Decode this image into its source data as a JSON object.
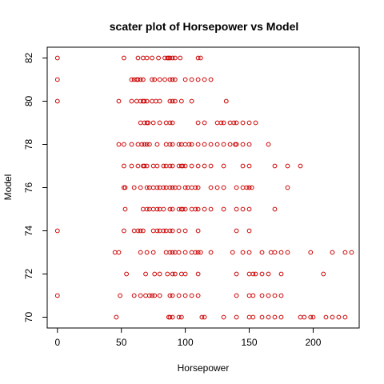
{
  "chart_data": {
    "type": "scatter",
    "title": "scater plot of Horsepower vs Model",
    "xlabel": "Horsepower",
    "ylabel": "Model",
    "xlim": [
      -8,
      236
    ],
    "ylim": [
      69.5,
      82.5
    ],
    "x_ticks": [
      0,
      50,
      100,
      150,
      200
    ],
    "y_ticks": [
      70,
      72,
      74,
      76,
      78,
      80,
      82
    ],
    "grid": false,
    "point_color": "#cc0000",
    "series": [
      {
        "points": [
          [
            0,
            82
          ],
          [
            52,
            82
          ],
          [
            63,
            82
          ],
          [
            67,
            82
          ],
          [
            70,
            82
          ],
          [
            74,
            82
          ],
          [
            79,
            82
          ],
          [
            84,
            82
          ],
          [
            86,
            82
          ],
          [
            87,
            82
          ],
          [
            88,
            82
          ],
          [
            90,
            82
          ],
          [
            92,
            82
          ],
          [
            96,
            82
          ],
          [
            110,
            82
          ],
          [
            112,
            82
          ],
          [
            0,
            81
          ],
          [
            58,
            81
          ],
          [
            60,
            81
          ],
          [
            62,
            81
          ],
          [
            63,
            81
          ],
          [
            65,
            81
          ],
          [
            67,
            81
          ],
          [
            74,
            81
          ],
          [
            76,
            81
          ],
          [
            80,
            81
          ],
          [
            84,
            81
          ],
          [
            88,
            81
          ],
          [
            90,
            81
          ],
          [
            92,
            81
          ],
          [
            100,
            81
          ],
          [
            105,
            81
          ],
          [
            110,
            81
          ],
          [
            115,
            81
          ],
          [
            120,
            81
          ],
          [
            0,
            80
          ],
          [
            48,
            80
          ],
          [
            58,
            80
          ],
          [
            62,
            80
          ],
          [
            65,
            80
          ],
          [
            67,
            80
          ],
          [
            68,
            80
          ],
          [
            70,
            80
          ],
          [
            74,
            80
          ],
          [
            77,
            80
          ],
          [
            80,
            80
          ],
          [
            88,
            80
          ],
          [
            90,
            80
          ],
          [
            92,
            80
          ],
          [
            97,
            80
          ],
          [
            105,
            80
          ],
          [
            132,
            80
          ],
          [
            65,
            79
          ],
          [
            68,
            79
          ],
          [
            70,
            79
          ],
          [
            71,
            79
          ],
          [
            75,
            79
          ],
          [
            80,
            79
          ],
          [
            85,
            79
          ],
          [
            88,
            79
          ],
          [
            90,
            79
          ],
          [
            110,
            79
          ],
          [
            115,
            79
          ],
          [
            125,
            79
          ],
          [
            128,
            79
          ],
          [
            130,
            79
          ],
          [
            135,
            79
          ],
          [
            138,
            79
          ],
          [
            140,
            79
          ],
          [
            145,
            79
          ],
          [
            150,
            79
          ],
          [
            155,
            79
          ],
          [
            48,
            78
          ],
          [
            52,
            78
          ],
          [
            58,
            78
          ],
          [
            63,
            78
          ],
          [
            66,
            78
          ],
          [
            68,
            78
          ],
          [
            70,
            78
          ],
          [
            72,
            78
          ],
          [
            78,
            78
          ],
          [
            85,
            78
          ],
          [
            88,
            78
          ],
          [
            90,
            78
          ],
          [
            95,
            78
          ],
          [
            97,
            78
          ],
          [
            100,
            78
          ],
          [
            103,
            78
          ],
          [
            105,
            78
          ],
          [
            110,
            78
          ],
          [
            115,
            78
          ],
          [
            120,
            78
          ],
          [
            125,
            78
          ],
          [
            130,
            78
          ],
          [
            135,
            78
          ],
          [
            139,
            78
          ],
          [
            140,
            78
          ],
          [
            145,
            78
          ],
          [
            150,
            78
          ],
          [
            165,
            78
          ],
          [
            52,
            77
          ],
          [
            58,
            77
          ],
          [
            63,
            77
          ],
          [
            67,
            77
          ],
          [
            68,
            77
          ],
          [
            70,
            77
          ],
          [
            75,
            77
          ],
          [
            78,
            77
          ],
          [
            83,
            77
          ],
          [
            85,
            77
          ],
          [
            88,
            77
          ],
          [
            90,
            77
          ],
          [
            95,
            77
          ],
          [
            97,
            77
          ],
          [
            98,
            77
          ],
          [
            100,
            77
          ],
          [
            105,
            77
          ],
          [
            110,
            77
          ],
          [
            115,
            77
          ],
          [
            120,
            77
          ],
          [
            130,
            77
          ],
          [
            145,
            77
          ],
          [
            150,
            77
          ],
          [
            170,
            77
          ],
          [
            180,
            77
          ],
          [
            190,
            77
          ],
          [
            52,
            76
          ],
          [
            53,
            76
          ],
          [
            60,
            76
          ],
          [
            65,
            76
          ],
          [
            70,
            76
          ],
          [
            72,
            76
          ],
          [
            75,
            76
          ],
          [
            78,
            76
          ],
          [
            80,
            76
          ],
          [
            83,
            76
          ],
          [
            85,
            76
          ],
          [
            88,
            76
          ],
          [
            90,
            76
          ],
          [
            92,
            76
          ],
          [
            95,
            76
          ],
          [
            100,
            76
          ],
          [
            102,
            76
          ],
          [
            105,
            76
          ],
          [
            108,
            76
          ],
          [
            110,
            76
          ],
          [
            120,
            76
          ],
          [
            125,
            76
          ],
          [
            130,
            76
          ],
          [
            140,
            76
          ],
          [
            145,
            76
          ],
          [
            148,
            76
          ],
          [
            150,
            76
          ],
          [
            152,
            76
          ],
          [
            180,
            76
          ],
          [
            53,
            75
          ],
          [
            67,
            75
          ],
          [
            70,
            75
          ],
          [
            72,
            75
          ],
          [
            75,
            75
          ],
          [
            78,
            75
          ],
          [
            80,
            75
          ],
          [
            83,
            75
          ],
          [
            88,
            75
          ],
          [
            90,
            75
          ],
          [
            95,
            75
          ],
          [
            97,
            75
          ],
          [
            98,
            75
          ],
          [
            100,
            75
          ],
          [
            105,
            75
          ],
          [
            108,
            75
          ],
          [
            110,
            75
          ],
          [
            115,
            75
          ],
          [
            120,
            75
          ],
          [
            130,
            75
          ],
          [
            140,
            75
          ],
          [
            145,
            75
          ],
          [
            150,
            75
          ],
          [
            170,
            75
          ],
          [
            0,
            74
          ],
          [
            52,
            74
          ],
          [
            60,
            74
          ],
          [
            63,
            74
          ],
          [
            65,
            74
          ],
          [
            67,
            74
          ],
          [
            75,
            74
          ],
          [
            78,
            74
          ],
          [
            80,
            74
          ],
          [
            83,
            74
          ],
          [
            85,
            74
          ],
          [
            88,
            74
          ],
          [
            90,
            74
          ],
          [
            95,
            74
          ],
          [
            100,
            74
          ],
          [
            110,
            74
          ],
          [
            140,
            74
          ],
          [
            150,
            74
          ],
          [
            45,
            73
          ],
          [
            48,
            73
          ],
          [
            65,
            73
          ],
          [
            70,
            73
          ],
          [
            75,
            73
          ],
          [
            85,
            73
          ],
          [
            88,
            73
          ],
          [
            90,
            73
          ],
          [
            92,
            73
          ],
          [
            95,
            73
          ],
          [
            100,
            73
          ],
          [
            105,
            73
          ],
          [
            108,
            73
          ],
          [
            110,
            73
          ],
          [
            112,
            73
          ],
          [
            120,
            73
          ],
          [
            137,
            73
          ],
          [
            145,
            73
          ],
          [
            150,
            73
          ],
          [
            160,
            73
          ],
          [
            167,
            73
          ],
          [
            170,
            73
          ],
          [
            175,
            73
          ],
          [
            180,
            73
          ],
          [
            198,
            73
          ],
          [
            215,
            73
          ],
          [
            225,
            73
          ],
          [
            230,
            73
          ],
          [
            54,
            72
          ],
          [
            69,
            72
          ],
          [
            76,
            72
          ],
          [
            80,
            72
          ],
          [
            86,
            72
          ],
          [
            90,
            72
          ],
          [
            92,
            72
          ],
          [
            97,
            72
          ],
          [
            100,
            72
          ],
          [
            110,
            72
          ],
          [
            140,
            72
          ],
          [
            150,
            72
          ],
          [
            153,
            72
          ],
          [
            155,
            72
          ],
          [
            160,
            72
          ],
          [
            165,
            72
          ],
          [
            175,
            72
          ],
          [
            208,
            72
          ],
          [
            0,
            71
          ],
          [
            49,
            71
          ],
          [
            60,
            71
          ],
          [
            65,
            71
          ],
          [
            69,
            71
          ],
          [
            72,
            71
          ],
          [
            74,
            71
          ],
          [
            76,
            71
          ],
          [
            80,
            71
          ],
          [
            88,
            71
          ],
          [
            90,
            71
          ],
          [
            95,
            71
          ],
          [
            100,
            71
          ],
          [
            105,
            71
          ],
          [
            110,
            71
          ],
          [
            140,
            71
          ],
          [
            150,
            71
          ],
          [
            153,
            71
          ],
          [
            160,
            71
          ],
          [
            165,
            71
          ],
          [
            170,
            71
          ],
          [
            175,
            71
          ],
          [
            46,
            70
          ],
          [
            87,
            70
          ],
          [
            88,
            70
          ],
          [
            90,
            70
          ],
          [
            95,
            70
          ],
          [
            97,
            70
          ],
          [
            113,
            70
          ],
          [
            115,
            70
          ],
          [
            130,
            70
          ],
          [
            140,
            70
          ],
          [
            150,
            70
          ],
          [
            153,
            70
          ],
          [
            160,
            70
          ],
          [
            165,
            70
          ],
          [
            170,
            70
          ],
          [
            175,
            70
          ],
          [
            190,
            70
          ],
          [
            193,
            70
          ],
          [
            198,
            70
          ],
          [
            200,
            70
          ],
          [
            210,
            70
          ],
          [
            215,
            70
          ],
          [
            220,
            70
          ],
          [
            225,
            70
          ]
        ]
      }
    ]
  }
}
